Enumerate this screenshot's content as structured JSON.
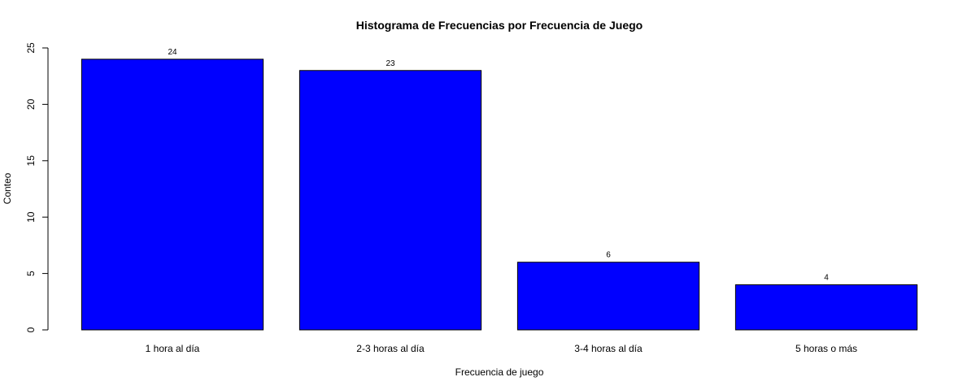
{
  "chart_data": {
    "type": "bar",
    "title": "Histograma de Frecuencias por Frecuencia de Juego",
    "xlabel": "Frecuencia de juego",
    "ylabel": "Conteo",
    "categories": [
      "1 hora al día",
      "2-3 horas al día",
      "3-4 horas al día",
      "5 horas o más"
    ],
    "values": [
      24,
      23,
      6,
      4
    ],
    "data_labels": [
      "24",
      "23",
      "6",
      "4"
    ],
    "ylim": [
      0,
      25
    ],
    "y_ticks": [
      0,
      5,
      10,
      15,
      20,
      25
    ],
    "y_tick_labels": [
      "0",
      "5",
      "10",
      "15",
      "20",
      "25"
    ],
    "bar_color": "#0000ff",
    "bar_border_color": "#000000",
    "grid": false,
    "legend": "none"
  }
}
